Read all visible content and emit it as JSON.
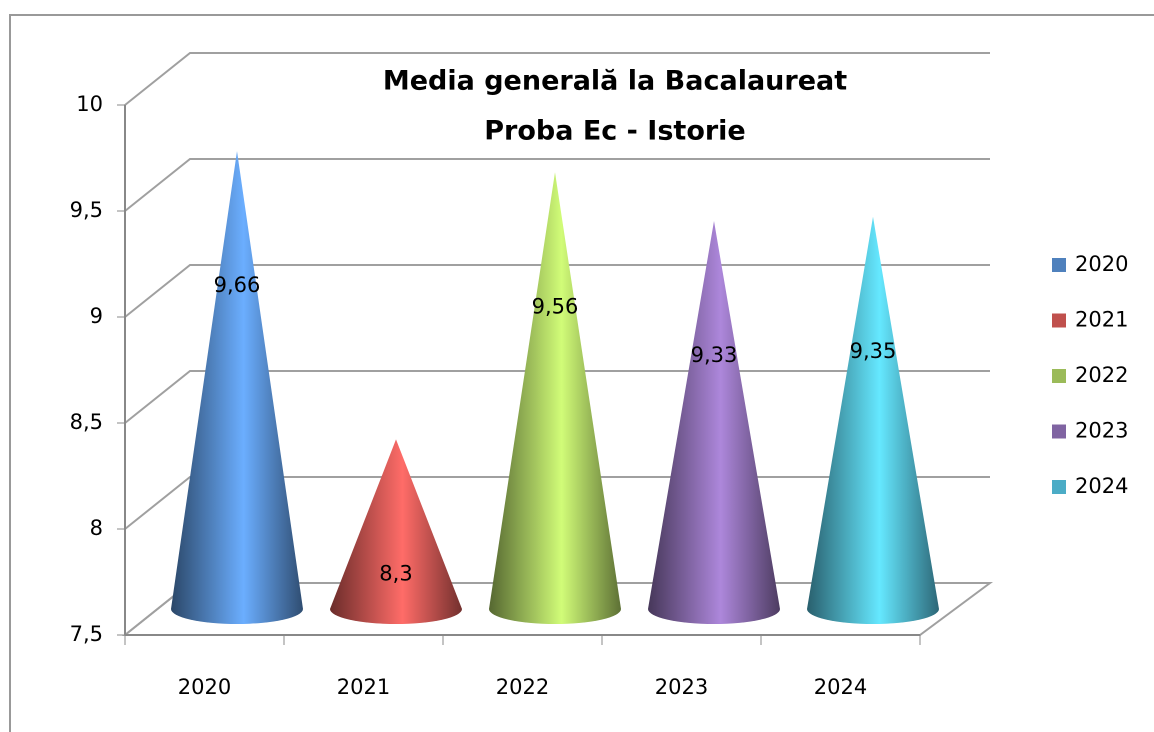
{
  "chart_data": {
    "type": "cone",
    "title": [
      "Media generală la Bacalaureat",
      "Proba Ec - Istorie"
    ],
    "categories": [
      "2020",
      "2021",
      "2022",
      "2023",
      "2024"
    ],
    "values": [
      9.66,
      8.3,
      9.56,
      9.33,
      9.35
    ],
    "value_labels": [
      "9,66",
      "8,3",
      "9,56",
      "9,33",
      "9,35"
    ],
    "colors": [
      "#4f81bd",
      "#c0504d",
      "#9bbb59",
      "#8064a2",
      "#4bacc6"
    ],
    "ylim": [
      7.5,
      10
    ],
    "yticks": [
      {
        "value": 7.5,
        "label": "7,5"
      },
      8,
      {
        "value": 8.5,
        "label": "8,5"
      },
      9,
      {
        "value": 9.5,
        "label": "9,5"
      },
      10
    ],
    "grid": true,
    "legend": "right"
  }
}
